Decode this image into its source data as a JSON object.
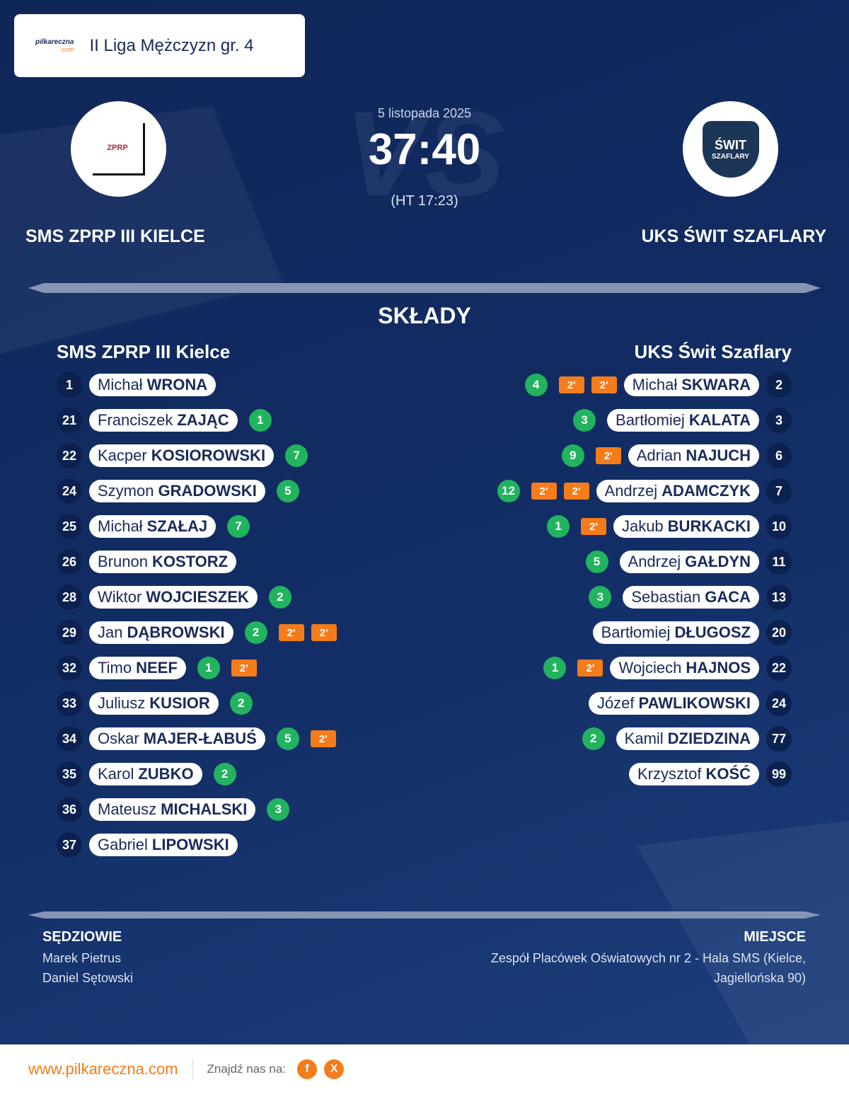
{
  "header": {
    "logo": [
      "pilkareczna",
      ".com"
    ],
    "league": "II Liga Mężczyzn gr. 4"
  },
  "match": {
    "vs": "VS",
    "date": "5 listopada 2025",
    "score": "37:40",
    "halftime": "(HT 17:23)",
    "home": {
      "name": "SMS ZPRP III KIELCE",
      "logo": "ZPRP"
    },
    "away": {
      "name": "UKS ŚWIT SZAFLARY",
      "logo": [
        "ŚWIT",
        "SZAFLARY"
      ]
    }
  },
  "lineups": {
    "title": "SKŁADY",
    "home": {
      "name": "SMS ZPRP III Kielce",
      "players": [
        {
          "number": 1,
          "first": "Michał",
          "last": "WRONA"
        },
        {
          "number": 21,
          "first": "Franciszek",
          "last": "ZAJĄC",
          "goals": 1
        },
        {
          "number": 22,
          "first": "Kacper",
          "last": "KOSIOROWSKI",
          "goals": 7
        },
        {
          "number": 24,
          "first": "Szymon",
          "last": "GRADOWSKI",
          "goals": 5
        },
        {
          "number": 25,
          "first": "Michał",
          "last": "SZAŁAJ",
          "goals": 7
        },
        {
          "number": 26,
          "first": "Brunon",
          "last": "KOSTORZ"
        },
        {
          "number": 28,
          "first": "Wiktor",
          "last": "WOJCIESZEK",
          "goals": 2
        },
        {
          "number": 29,
          "first": "Jan",
          "last": "DĄBROWSKI",
          "goals": 2,
          "penalties": [
            "2'",
            "2'"
          ]
        },
        {
          "number": 32,
          "first": "Timo",
          "last": "NEEF",
          "goals": 1,
          "penalties": [
            "2'"
          ]
        },
        {
          "number": 33,
          "first": "Juliusz",
          "last": "KUSIOR",
          "goals": 2
        },
        {
          "number": 34,
          "first": "Oskar",
          "last": "MAJER-ŁABUŚ",
          "goals": 5,
          "penalties": [
            "2'"
          ]
        },
        {
          "number": 35,
          "first": "Karol",
          "last": "ZUBKO",
          "goals": 2
        },
        {
          "number": 36,
          "first": "Mateusz",
          "last": "MICHALSKI",
          "goals": 3
        },
        {
          "number": 37,
          "first": "Gabriel",
          "last": "LIPOWSKI"
        }
      ]
    },
    "away": {
      "name": "UKS Świt Szaflary",
      "players": [
        {
          "number": 2,
          "first": "Michał",
          "last": "SKWARA",
          "goals": 4,
          "penalties": [
            "2'",
            "2'"
          ]
        },
        {
          "number": 3,
          "first": "Bartłomiej",
          "last": "KALATA",
          "goals": 3
        },
        {
          "number": 6,
          "first": "Adrian",
          "last": "NAJUCH",
          "goals": 9,
          "penalties": [
            "2'"
          ]
        },
        {
          "number": 7,
          "first": "Andrzej",
          "last": "ADAMCZYK",
          "goals": 12,
          "penalties": [
            "2'",
            "2'"
          ]
        },
        {
          "number": 10,
          "first": "Jakub",
          "last": "BURKACKI",
          "goals": 1,
          "penalties": [
            "2'"
          ]
        },
        {
          "number": 11,
          "first": "Andrzej",
          "last": "GAŁDYN",
          "goals": 5
        },
        {
          "number": 13,
          "first": "Sebastian",
          "last": "GACA",
          "goals": 3
        },
        {
          "number": 20,
          "first": "Bartłomiej",
          "last": "DŁUGOSZ"
        },
        {
          "number": 22,
          "first": "Wojciech",
          "last": "HAJNOS",
          "goals": 1,
          "penalties": [
            "2'"
          ]
        },
        {
          "number": 24,
          "first": "Józef",
          "last": "PAWLIKOWSKI"
        },
        {
          "number": 77,
          "first": "Kamil",
          "last": "DZIEDZINA",
          "goals": 2
        },
        {
          "number": 99,
          "first": "Krzysztof",
          "last": "KOŚĆ"
        }
      ]
    }
  },
  "officials": {
    "referees_label": "SĘDZIOWIE",
    "referees": [
      "Marek Pietrus",
      "Daniel Sętowski"
    ],
    "venue_label": "MIEJSCE",
    "venue": "Zespół Placówek Oświatowych nr 2 - Hala SMS (Kielce, Jagiellońska 90)"
  },
  "footer": {
    "url": "www.pilkareczna.com",
    "follow": "Znajdź nas na:",
    "social": [
      "f",
      "X"
    ]
  }
}
